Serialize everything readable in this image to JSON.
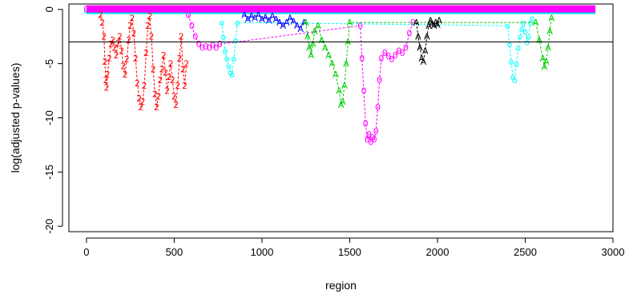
{
  "chart_data": {
    "type": "scatter",
    "title": "",
    "xlabel": "region",
    "ylabel": "log(adjusted p-values)",
    "xlim": [
      -100,
      3000
    ],
    "ylim": [
      -20.5,
      0.5
    ],
    "x_ticks": [
      0,
      500,
      1000,
      1500,
      2000,
      2500,
      3000
    ],
    "y_ticks": [
      0,
      -5,
      -10,
      -15,
      -20
    ],
    "x_tick_labels": [
      "0",
      "500",
      "1000",
      "1500",
      "2000",
      "2500",
      "3000"
    ],
    "y_tick_labels": [
      "0",
      "-5",
      "-10",
      "-15",
      "-20"
    ],
    "threshold_line": -3,
    "grid": false,
    "marker": "glyph",
    "series": [
      {
        "color": "#ff0000",
        "glyph": "2",
        "points": [
          [
            80,
            -0.5
          ],
          [
            90,
            -1.2
          ],
          [
            100,
            -2.5
          ],
          [
            105,
            -4.8
          ],
          [
            110,
            -6.5
          ],
          [
            115,
            -7.2
          ],
          [
            120,
            -6.0
          ],
          [
            130,
            -4.5
          ],
          [
            140,
            -3.2
          ],
          [
            150,
            -2.8
          ],
          [
            160,
            -3.5
          ],
          [
            170,
            -4.2
          ],
          [
            180,
            -3.1
          ],
          [
            190,
            -2.5
          ],
          [
            200,
            -3.8
          ],
          [
            210,
            -5.2
          ],
          [
            220,
            -6.0
          ],
          [
            230,
            -4.6
          ],
          [
            240,
            -2.8
          ],
          [
            250,
            -1.5
          ],
          [
            260,
            -0.8
          ],
          [
            270,
            -2.2
          ],
          [
            280,
            -4.5
          ],
          [
            290,
            -6.8
          ],
          [
            300,
            -8.2
          ],
          [
            310,
            -9.0
          ],
          [
            320,
            -8.5
          ],
          [
            330,
            -7.0
          ],
          [
            340,
            -4.0
          ],
          [
            350,
            -1.5
          ],
          [
            360,
            -0.6
          ],
          [
            370,
            -2.5
          ],
          [
            380,
            -5.5
          ],
          [
            390,
            -7.8
          ],
          [
            400,
            -9.0
          ],
          [
            410,
            -8.0
          ],
          [
            420,
            -6.5
          ],
          [
            430,
            -5.5
          ],
          [
            440,
            -4.2
          ],
          [
            450,
            -5.8
          ],
          [
            460,
            -7.5
          ],
          [
            470,
            -6.2
          ],
          [
            480,
            -5.0
          ],
          [
            490,
            -6.5
          ],
          [
            500,
            -8.0
          ],
          [
            510,
            -8.8
          ],
          [
            520,
            -7.0
          ],
          [
            530,
            -4.5
          ],
          [
            540,
            -2.5
          ],
          [
            550,
            -5.5
          ],
          [
            560,
            -7.0
          ],
          [
            570,
            -5.0
          ]
        ]
      },
      {
        "color": "#ff00ff",
        "glyph": "0",
        "points": [
          [
            580,
            -0.5
          ],
          [
            600,
            -1.5
          ],
          [
            620,
            -2.5
          ],
          [
            640,
            -3.2
          ],
          [
            660,
            -3.5
          ],
          [
            680,
            -3.4
          ],
          [
            700,
            -3.5
          ],
          [
            720,
            -3.3
          ],
          [
            740,
            -3.5
          ],
          [
            760,
            -3.2
          ],
          [
            1560,
            -1.5
          ],
          [
            1570,
            -4.5
          ],
          [
            1580,
            -7.5
          ],
          [
            1590,
            -10.5
          ],
          [
            1600,
            -12.0
          ],
          [
            1610,
            -11.5
          ],
          [
            1620,
            -12.2
          ],
          [
            1630,
            -11.8
          ],
          [
            1640,
            -12.0
          ],
          [
            1650,
            -11.2
          ],
          [
            1660,
            -9.0
          ],
          [
            1670,
            -6.5
          ],
          [
            1680,
            -4.5
          ],
          [
            1700,
            -4.0
          ],
          [
            1720,
            -4.3
          ],
          [
            1740,
            -4.6
          ],
          [
            1760,
            -4.2
          ],
          [
            1780,
            -3.8
          ],
          [
            1800,
            -4.0
          ],
          [
            1820,
            -3.5
          ],
          [
            1840,
            -2.2
          ],
          [
            1860,
            -1.2
          ]
        ]
      },
      {
        "color": "#00ffff",
        "glyph": "o",
        "points": [
          [
            770,
            -1.2
          ],
          [
            780,
            -2.5
          ],
          [
            790,
            -3.8
          ],
          [
            800,
            -4.5
          ],
          [
            810,
            -5.2
          ],
          [
            820,
            -5.8
          ],
          [
            830,
            -6.0
          ],
          [
            840,
            -4.5
          ],
          [
            850,
            -2.8
          ],
          [
            860,
            -1.2
          ],
          [
            2400,
            -1.5
          ],
          [
            2410,
            -3.2
          ],
          [
            2420,
            -4.8
          ],
          [
            2430,
            -6.2
          ],
          [
            2440,
            -6.5
          ],
          [
            2450,
            -5.0
          ],
          [
            2460,
            -3.5
          ],
          [
            2470,
            -2.5
          ],
          [
            2480,
            -1.8
          ],
          [
            2490,
            -1.2
          ],
          [
            2500,
            -2.0
          ],
          [
            2510,
            -3.0
          ],
          [
            2520,
            -2.5
          ],
          [
            2530,
            -1.2
          ],
          [
            2540,
            -0.8
          ]
        ]
      },
      {
        "color": "#0000ff",
        "glyph": "A",
        "points": [
          [
            900,
            -0.5
          ],
          [
            920,
            -0.9
          ],
          [
            940,
            -0.6
          ],
          [
            960,
            -0.8
          ],
          [
            980,
            -0.5
          ],
          [
            1000,
            -0.9
          ],
          [
            1020,
            -0.7
          ],
          [
            1040,
            -1.0
          ],
          [
            1060,
            -0.6
          ],
          [
            1080,
            -0.9
          ],
          [
            1100,
            -1.2
          ],
          [
            1120,
            -1.5
          ],
          [
            1140,
            -1.2
          ],
          [
            1160,
            -0.8
          ],
          [
            1180,
            -1.1
          ],
          [
            1200,
            -1.5
          ],
          [
            1220,
            -1.8
          ],
          [
            1240,
            -1.2
          ]
        ]
      },
      {
        "color": "#00cc00",
        "glyph": "A",
        "points": [
          [
            1250,
            -1.2
          ],
          [
            1260,
            -2.5
          ],
          [
            1270,
            -3.5
          ],
          [
            1280,
            -4.2
          ],
          [
            1290,
            -3.2
          ],
          [
            1300,
            -2.0
          ],
          [
            1320,
            -1.5
          ],
          [
            1340,
            -2.8
          ],
          [
            1360,
            -3.5
          ],
          [
            1380,
            -4.2
          ],
          [
            1400,
            -5.0
          ],
          [
            1420,
            -6.0
          ],
          [
            1440,
            -7.5
          ],
          [
            1450,
            -8.8
          ],
          [
            1460,
            -8.5
          ],
          [
            1470,
            -7.0
          ],
          [
            1480,
            -5.0
          ],
          [
            1490,
            -3.0
          ],
          [
            1500,
            -1.2
          ],
          [
            2560,
            -1.2
          ],
          [
            2580,
            -2.8
          ],
          [
            2600,
            -4.5
          ],
          [
            2610,
            -5.3
          ],
          [
            2620,
            -4.8
          ],
          [
            2630,
            -3.5
          ],
          [
            2640,
            -2.0
          ],
          [
            2650,
            -0.8
          ]
        ]
      },
      {
        "color": "#000000",
        "glyph": "A",
        "points": [
          [
            1880,
            -1.2
          ],
          [
            1890,
            -2.5
          ],
          [
            1900,
            -3.5
          ],
          [
            1910,
            -4.5
          ],
          [
            1920,
            -4.8
          ],
          [
            1930,
            -3.8
          ],
          [
            1940,
            -2.5
          ],
          [
            1950,
            -1.5
          ],
          [
            1960,
            -1.0
          ],
          [
            1970,
            -1.3
          ],
          [
            1980,
            -1.5
          ],
          [
            1990,
            -1.2
          ],
          [
            2000,
            -1.4
          ],
          [
            2010,
            -1.0
          ]
        ]
      }
    ],
    "band_series": [
      {
        "color": "#00e5e5",
        "glyph": "o",
        "x_start": 0,
        "x_end": 2900,
        "y": -0.1
      },
      {
        "color": "#ff00ff",
        "glyph": "0",
        "x_start": 0,
        "x_end": 2900,
        "y": 0.05
      }
    ]
  }
}
